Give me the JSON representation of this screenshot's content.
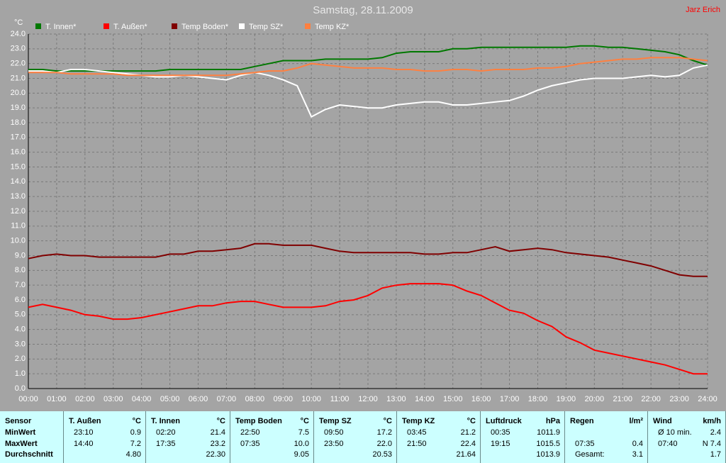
{
  "chart_data": {
    "type": "line",
    "title": "Samstag, 28.11.2009",
    "author": "Jarz Erich",
    "y_label": "°C",
    "x": [
      0,
      0.5,
      1,
      1.5,
      2,
      2.5,
      3,
      3.5,
      4,
      4.5,
      5,
      5.5,
      6,
      6.5,
      7,
      7.5,
      8,
      8.5,
      9,
      9.5,
      10,
      10.5,
      11,
      11.5,
      12,
      12.5,
      13,
      13.5,
      14,
      14.5,
      15,
      15.5,
      16,
      16.5,
      17,
      17.5,
      18,
      18.5,
      19,
      19.5,
      20,
      20.5,
      21,
      21.5,
      22,
      22.5,
      23,
      23.5,
      24
    ],
    "series": [
      {
        "name": "T. Innen*",
        "color": "#007800",
        "values": [
          21.6,
          21.6,
          21.5,
          21.5,
          21.5,
          21.5,
          21.5,
          21.5,
          21.5,
          21.5,
          21.6,
          21.6,
          21.6,
          21.6,
          21.6,
          21.6,
          21.8,
          22.0,
          22.2,
          22.2,
          22.2,
          22.3,
          22.3,
          22.3,
          22.3,
          22.4,
          22.7,
          22.8,
          22.8,
          22.8,
          23.0,
          23.0,
          23.1,
          23.1,
          23.1,
          23.1,
          23.1,
          23.1,
          23.1,
          23.2,
          23.2,
          23.1,
          23.1,
          23.0,
          22.9,
          22.8,
          22.6,
          22.2,
          21.9
        ]
      },
      {
        "name": "T. Außen*",
        "color": "#ff0000",
        "values": [
          5.5,
          5.7,
          5.5,
          5.3,
          5.0,
          4.9,
          4.7,
          4.7,
          4.8,
          5.0,
          5.2,
          5.4,
          5.6,
          5.6,
          5.8,
          5.9,
          5.9,
          5.7,
          5.5,
          5.5,
          5.5,
          5.6,
          5.9,
          6.0,
          6.3,
          6.8,
          7.0,
          7.1,
          7.1,
          7.1,
          7.0,
          6.6,
          6.3,
          5.8,
          5.3,
          5.1,
          4.6,
          4.2,
          3.5,
          3.1,
          2.6,
          2.4,
          2.2,
          2.0,
          1.8,
          1.6,
          1.3,
          1.0,
          1.0
        ]
      },
      {
        "name": "Temp Boden*",
        "color": "#800000",
        "values": [
          8.8,
          9.0,
          9.1,
          9.0,
          9.0,
          8.9,
          8.9,
          8.9,
          8.9,
          8.9,
          9.1,
          9.1,
          9.3,
          9.3,
          9.4,
          9.5,
          9.8,
          9.8,
          9.7,
          9.7,
          9.7,
          9.5,
          9.3,
          9.2,
          9.2,
          9.2,
          9.2,
          9.2,
          9.1,
          9.1,
          9.2,
          9.2,
          9.4,
          9.6,
          9.3,
          9.4,
          9.5,
          9.4,
          9.2,
          9.1,
          9.0,
          8.9,
          8.7,
          8.5,
          8.3,
          8.0,
          7.7,
          7.6,
          7.6
        ]
      },
      {
        "name": "Temp SZ*",
        "color": "#ffffff",
        "values": [
          21.5,
          21.5,
          21.4,
          21.6,
          21.6,
          21.5,
          21.4,
          21.3,
          21.2,
          21.1,
          21.1,
          21.2,
          21.1,
          21.0,
          20.9,
          21.2,
          21.4,
          21.2,
          20.9,
          20.5,
          18.4,
          18.9,
          19.2,
          19.1,
          19.0,
          19.0,
          19.2,
          19.3,
          19.4,
          19.4,
          19.2,
          19.2,
          19.3,
          19.4,
          19.5,
          19.8,
          20.2,
          20.5,
          20.7,
          20.9,
          21.0,
          21.0,
          21.0,
          21.1,
          21.2,
          21.1,
          21.2,
          21.7,
          21.9
        ]
      },
      {
        "name": "Temp KZ*",
        "color": "#ff8040",
        "values": [
          21.4,
          21.4,
          21.4,
          21.3,
          21.3,
          21.3,
          21.3,
          21.2,
          21.2,
          21.2,
          21.2,
          21.2,
          21.2,
          21.2,
          21.2,
          21.3,
          21.4,
          21.5,
          21.5,
          21.7,
          22.0,
          21.9,
          21.8,
          21.7,
          21.7,
          21.7,
          21.6,
          21.6,
          21.5,
          21.5,
          21.6,
          21.6,
          21.5,
          21.6,
          21.6,
          21.6,
          21.7,
          21.7,
          21.8,
          22.0,
          22.1,
          22.2,
          22.3,
          22.3,
          22.4,
          22.4,
          22.4,
          22.3,
          22.2
        ]
      }
    ],
    "xlim": [
      0,
      24
    ],
    "xticks": [
      {
        "value": 0,
        "label": "00:00"
      },
      {
        "value": 1,
        "label": "01:00"
      },
      {
        "value": 2,
        "label": "02:00"
      },
      {
        "value": 3,
        "label": "03:00"
      },
      {
        "value": 4,
        "label": "04:00"
      },
      {
        "value": 5,
        "label": "05:00"
      },
      {
        "value": 6,
        "label": "06:00"
      },
      {
        "value": 7,
        "label": "07:00"
      },
      {
        "value": 8,
        "label": "08:00"
      },
      {
        "value": 9,
        "label": "09:00"
      },
      {
        "value": 10,
        "label": "10:00"
      },
      {
        "value": 11,
        "label": "11:00"
      },
      {
        "value": 12,
        "label": "12:00"
      },
      {
        "value": 13,
        "label": "13:00"
      },
      {
        "value": 14,
        "label": "14:00"
      },
      {
        "value": 15,
        "label": "15:00"
      },
      {
        "value": 16,
        "label": "16:00"
      },
      {
        "value": 17,
        "label": "17:00"
      },
      {
        "value": 18,
        "label": "18:00"
      },
      {
        "value": 19,
        "label": "19:00"
      },
      {
        "value": 20,
        "label": "20:00"
      },
      {
        "value": 21,
        "label": "21:00"
      },
      {
        "value": 22,
        "label": "22:00"
      },
      {
        "value": 23,
        "label": "23:00"
      },
      {
        "value": 24,
        "label": "24:00"
      }
    ],
    "ylim": [
      0,
      24
    ],
    "yticks": [
      {
        "value": 0,
        "label": "0.0"
      },
      {
        "value": 1,
        "label": "1.0"
      },
      {
        "value": 2,
        "label": "2.0"
      },
      {
        "value": 3,
        "label": "3.0"
      },
      {
        "value": 4,
        "label": "4.0"
      },
      {
        "value": 5,
        "label": "5.0"
      },
      {
        "value": 6,
        "label": "6.0"
      },
      {
        "value": 7,
        "label": "7.0"
      },
      {
        "value": 8,
        "label": "8.0"
      },
      {
        "value": 9,
        "label": "9.0"
      },
      {
        "value": 10,
        "label": "10.0"
      },
      {
        "value": 11,
        "label": "11.0"
      },
      {
        "value": 12,
        "label": "12.0"
      },
      {
        "value": 13,
        "label": "13.0"
      },
      {
        "value": 14,
        "label": "14.0"
      },
      {
        "value": 15,
        "label": "15.0"
      },
      {
        "value": 16,
        "label": "16.0"
      },
      {
        "value": 17,
        "label": "17.0"
      },
      {
        "value": 18,
        "label": "18.0"
      },
      {
        "value": 19,
        "label": "19.0"
      },
      {
        "value": 20,
        "label": "20.0"
      },
      {
        "value": 21,
        "label": "21.0"
      },
      {
        "value": 22,
        "label": "22.0"
      },
      {
        "value": 23,
        "label": "23.0"
      },
      {
        "value": 24,
        "label": "24.0"
      }
    ],
    "grid": true
  },
  "table": {
    "groups": [
      {
        "header": "Sensor",
        "rows": [
          [
            "MinWert"
          ],
          [
            "MaxWert"
          ],
          [
            "Durchschnitt"
          ]
        ]
      },
      {
        "header": "T. Außen",
        "unit": "°C",
        "rows": [
          [
            "23:10",
            "0.9"
          ],
          [
            "14:40",
            "7.2"
          ],
          [
            "4.80"
          ]
        ]
      },
      {
        "header": "T. Innen",
        "unit": "°C",
        "rows": [
          [
            "02:20",
            "21.4"
          ],
          [
            "17:35",
            "23.2"
          ],
          [
            "22.30"
          ]
        ]
      },
      {
        "header": "Temp Boden",
        "unit": "°C",
        "rows": [
          [
            "22:50",
            "7.5"
          ],
          [
            "07:35",
            "10.0"
          ],
          [
            "9.05"
          ]
        ]
      },
      {
        "header": "Temp SZ",
        "unit": "°C",
        "rows": [
          [
            "09:50",
            "17.2"
          ],
          [
            "23:50",
            "22.0"
          ],
          [
            "20.53"
          ]
        ]
      },
      {
        "header": "Temp KZ",
        "unit": "°C",
        "rows": [
          [
            "03:45",
            "21.2"
          ],
          [
            "21:50",
            "22.4"
          ],
          [
            "21.64"
          ]
        ]
      },
      {
        "header": "Luftdruck",
        "unit": "hPa",
        "rows": [
          [
            "00:35",
            "1011.9"
          ],
          [
            "19:15",
            "1015.5"
          ],
          [
            "1013.9"
          ]
        ]
      },
      {
        "header": "Regen",
        "unit": "l/m²",
        "rows": [
          [],
          [
            "07:35",
            "0.4"
          ],
          [
            "Gesamt:",
            "3.1"
          ]
        ]
      },
      {
        "header": "Wind",
        "unit": "km/h",
        "rows": [
          [
            "Ø 10 min.",
            "2.4"
          ],
          [
            "07:40",
            "N 7.4"
          ],
          [
            "1.7"
          ]
        ]
      }
    ]
  }
}
